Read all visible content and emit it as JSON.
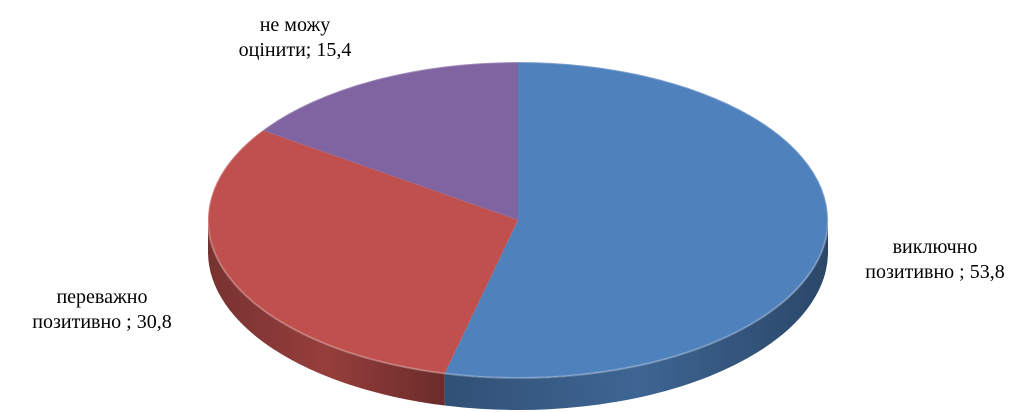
{
  "chart_data": {
    "type": "pie",
    "style": "3d",
    "title": "",
    "slices": [
      {
        "label_line1": "виключно",
        "label_line2": "позитивно ; 53,8",
        "value": 53.8,
        "color": "#4F81BD"
      },
      {
        "label_line1": "переважно",
        "label_line2": "позитивно ; 30,8",
        "value": 30.8,
        "color": "#C0504D"
      },
      {
        "label_line1": "не можу",
        "label_line2": "оцінити; 15,4",
        "value": 15.4,
        "color": "#8064A2"
      }
    ],
    "start_direction": "top",
    "legend": "none"
  }
}
